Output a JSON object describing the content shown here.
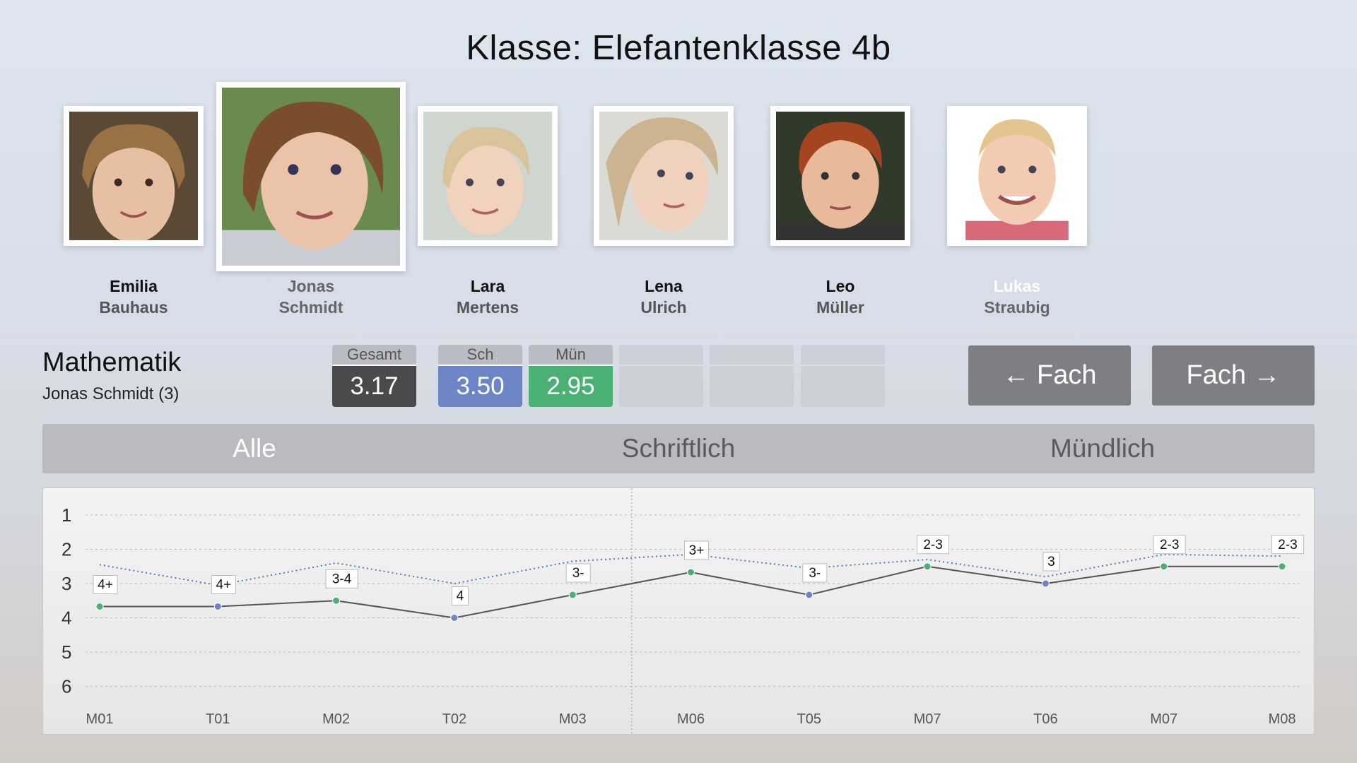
{
  "header": {
    "title": "Klasse: Elefantenklasse 4b"
  },
  "students": [
    {
      "first": "Emilia",
      "last": "Bauhaus"
    },
    {
      "first": "Jonas",
      "last": "Schmidt",
      "selected": true
    },
    {
      "first": "Lara",
      "last": "Mertens"
    },
    {
      "first": "Lena",
      "last": "Ulrich"
    },
    {
      "first": "Leo",
      "last": "Müller"
    },
    {
      "first": "Lukas",
      "last": "Straubig"
    }
  ],
  "subject": {
    "name": "Mathematik",
    "student_line": "Jonas Schmidt (3)"
  },
  "grades": [
    {
      "label": "Gesamt",
      "value": "3.17",
      "color": "#4a4a4c"
    },
    {
      "label": "Sch",
      "value": "3.50",
      "color": "#6c85c7"
    },
    {
      "label": "Mün",
      "value": "2.95",
      "color": "#4bb073"
    }
  ],
  "nav": {
    "prev_label": "← Fach",
    "next_label": "Fach →"
  },
  "tabs": [
    {
      "label": "Alle",
      "active": true
    },
    {
      "label": "Schriftlich",
      "active": false
    },
    {
      "label": "Mündlich",
      "active": false
    }
  ],
  "colors": {
    "written_point": "#6c85c7",
    "oral_point": "#4bb073",
    "grade_line": "#555555",
    "average_line": "#4f7da8"
  },
  "chart_data": {
    "type": "line",
    "y_ticks": [
      "1",
      "2",
      "3",
      "4",
      "5",
      "6"
    ],
    "ylim": [
      1,
      6
    ],
    "y_inverted": true,
    "grid": true,
    "categories": [
      "M01",
      "T01",
      "M02",
      "T02",
      "M03",
      "M06",
      "T05",
      "M07",
      "T06",
      "M07",
      "M08"
    ],
    "series": [
      {
        "values": [
          3.67,
          3.67,
          3.5,
          4.0,
          3.33,
          2.67,
          3.33,
          2.5,
          3.0,
          2.5,
          2.5
        ],
        "point_type": [
          "oral",
          "written",
          "oral",
          "written",
          "oral",
          "oral",
          "written",
          "oral",
          "written",
          "oral",
          "oral"
        ],
        "labels": [
          "4+",
          "4+",
          "3-4",
          "4",
          "3-",
          "3+",
          "3-",
          "2-3",
          "3",
          "2-3",
          "2-3"
        ]
      },
      {
        "values": [
          2.45,
          3.05,
          2.4,
          3.0,
          2.35,
          2.15,
          2.55,
          2.3,
          2.8,
          2.15,
          2.2
        ],
        "style": "dotted"
      }
    ],
    "divider_after_category": 4
  }
}
